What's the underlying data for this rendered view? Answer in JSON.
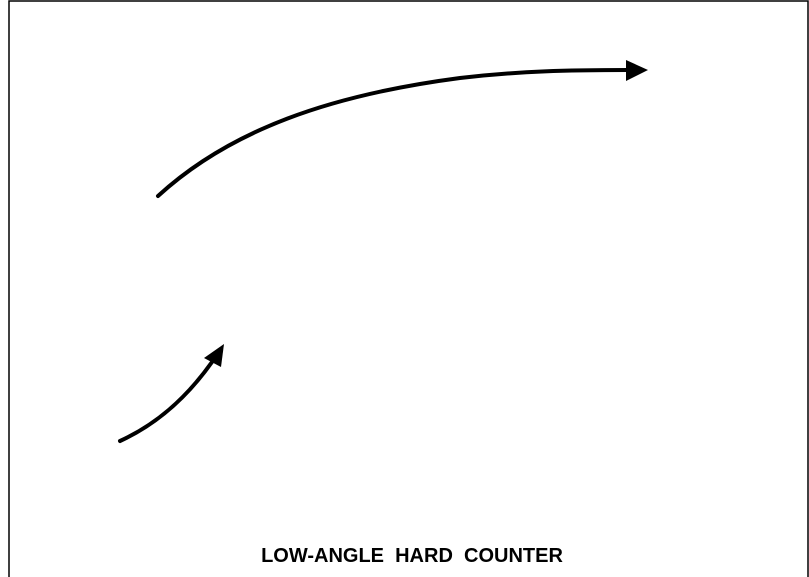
{
  "caption": "LOW-ANGLE  HARD  COUNTER"
}
